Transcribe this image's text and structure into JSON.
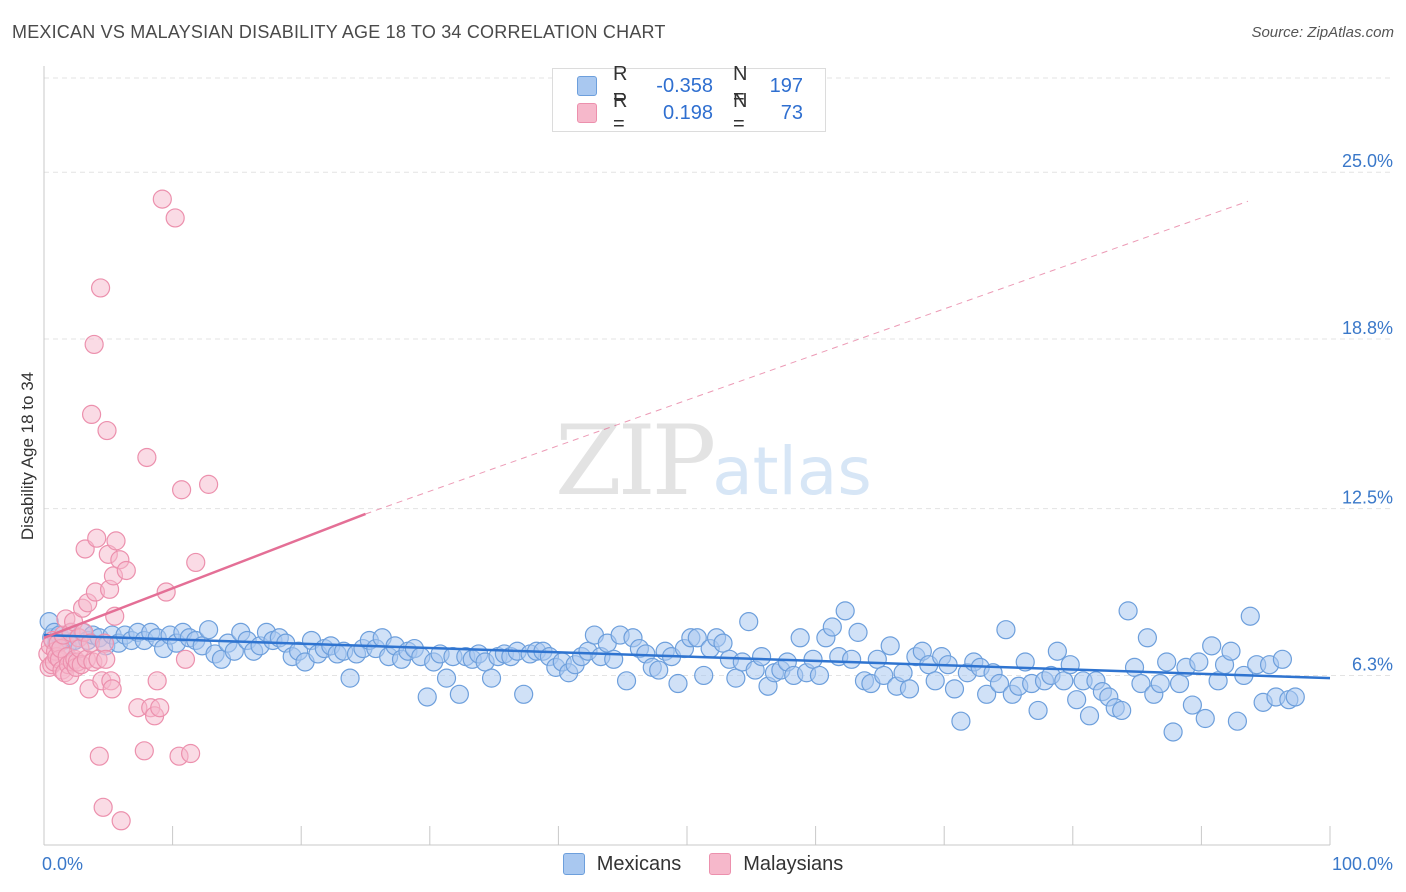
{
  "header": {
    "title": "MEXICAN VS MALAYSIAN DISABILITY AGE 18 TO 34 CORRELATION CHART",
    "source": "Source: ZipAtlas.com"
  },
  "watermark": {
    "zip": "ZIP",
    "atlas": "atlas"
  },
  "legend": {
    "rows": [
      {
        "r_label": "R =",
        "r_value": "-0.358",
        "n_label": "N =",
        "n_value": "197",
        "color": "#a9c8f0"
      },
      {
        "r_label": "R =",
        "r_value": "0.198",
        "n_label": "N =",
        "n_value": "73",
        "color": "#f6b8cb"
      }
    ]
  },
  "bottom_legend": {
    "series1": "Mexicans",
    "series2": "Malaysians"
  },
  "colors": {
    "blue_fill": "#a9c8f0",
    "blue_stroke": "#6d9fdc",
    "blue_line": "#2f74d0",
    "pink_fill": "#f6b8cb",
    "pink_stroke": "#ec90ad",
    "pink_line": "#e46f96",
    "grid": "#e3e3e3",
    "tick_label": "#3a78c9"
  },
  "chart_data": {
    "type": "scatter",
    "title": "MEXICAN VS MALAYSIAN DISABILITY AGE 18 TO 34 CORRELATION CHART",
    "xlabel": "",
    "ylabel": "Disability Age 18 to 34",
    "xlim": [
      0,
      100
    ],
    "ylim": [
      0,
      28.5
    ],
    "x_tick_labels": [
      "0.0%",
      "100.0%"
    ],
    "y_ticks": [
      6.3,
      12.5,
      18.8,
      25.0
    ],
    "y_tick_labels": [
      "6.3%",
      "12.5%",
      "18.8%",
      "25.0%"
    ],
    "grid": true,
    "legend_position": "top-center",
    "series": [
      {
        "name": "Mexicans",
        "r": -0.358,
        "n": 197,
        "trend": {
          "x": [
            0,
            100
          ],
          "y": [
            7.8,
            6.2
          ],
          "style": "solid"
        },
        "points": [
          [
            0.4,
            8.3
          ],
          [
            0.6,
            7.7
          ],
          [
            0.8,
            7.9
          ],
          [
            1.0,
            7.5
          ],
          [
            1.2,
            7.8
          ],
          [
            1.5,
            7.6
          ],
          [
            1.8,
            7.4
          ],
          [
            2.1,
            7.9
          ],
          [
            2.4,
            7.6
          ],
          [
            2.7,
            7.7
          ],
          [
            3.0,
            7.9
          ],
          [
            3.4,
            7.6
          ],
          [
            3.8,
            7.8
          ],
          [
            4.3,
            7.7
          ],
          [
            4.8,
            7.4
          ],
          [
            5.3,
            7.8
          ],
          [
            5.8,
            7.5
          ],
          [
            6.3,
            7.8
          ],
          [
            6.8,
            7.6
          ],
          [
            7.3,
            7.9
          ],
          [
            7.8,
            7.6
          ],
          [
            8.3,
            7.9
          ],
          [
            8.8,
            7.7
          ],
          [
            9.3,
            7.3
          ],
          [
            9.8,
            7.8
          ],
          [
            10.3,
            7.5
          ],
          [
            10.8,
            7.9
          ],
          [
            11.3,
            7.7
          ],
          [
            11.8,
            7.6
          ],
          [
            12.3,
            7.4
          ],
          [
            12.8,
            8.0
          ],
          [
            13.3,
            7.1
          ],
          [
            13.8,
            6.9
          ],
          [
            14.3,
            7.5
          ],
          [
            14.8,
            7.2
          ],
          [
            15.3,
            7.9
          ],
          [
            15.8,
            7.6
          ],
          [
            16.3,
            7.2
          ],
          [
            16.8,
            7.4
          ],
          [
            17.3,
            7.9
          ],
          [
            17.8,
            7.6
          ],
          [
            18.3,
            7.7
          ],
          [
            18.8,
            7.5
          ],
          [
            19.3,
            7.0
          ],
          [
            19.8,
            7.2
          ],
          [
            20.3,
            6.8
          ],
          [
            20.8,
            7.6
          ],
          [
            21.3,
            7.1
          ],
          [
            21.8,
            7.3
          ],
          [
            22.3,
            7.4
          ],
          [
            22.8,
            7.1
          ],
          [
            23.3,
            7.2
          ],
          [
            23.8,
            6.2
          ],
          [
            24.3,
            7.1
          ],
          [
            24.8,
            7.3
          ],
          [
            25.3,
            7.6
          ],
          [
            25.8,
            7.3
          ],
          [
            26.3,
            7.7
          ],
          [
            26.8,
            7.0
          ],
          [
            27.3,
            7.4
          ],
          [
            27.8,
            6.9
          ],
          [
            28.3,
            7.2
          ],
          [
            28.8,
            7.3
          ],
          [
            29.3,
            7.0
          ],
          [
            29.8,
            5.5
          ],
          [
            30.3,
            6.8
          ],
          [
            30.8,
            7.1
          ],
          [
            31.3,
            6.2
          ],
          [
            31.8,
            7.0
          ],
          [
            32.3,
            5.6
          ],
          [
            32.8,
            7.0
          ],
          [
            33.3,
            6.9
          ],
          [
            33.8,
            7.1
          ],
          [
            34.3,
            6.8
          ],
          [
            34.8,
            6.2
          ],
          [
            35.3,
            7.0
          ],
          [
            35.8,
            7.1
          ],
          [
            36.3,
            7.0
          ],
          [
            36.8,
            7.2
          ],
          [
            37.3,
            5.6
          ],
          [
            37.8,
            7.1
          ],
          [
            38.3,
            7.2
          ],
          [
            38.8,
            7.2
          ],
          [
            39.3,
            7.0
          ],
          [
            39.8,
            6.6
          ],
          [
            40.3,
            6.8
          ],
          [
            40.8,
            6.4
          ],
          [
            41.3,
            6.7
          ],
          [
            41.8,
            7.0
          ],
          [
            42.3,
            7.2
          ],
          [
            42.8,
            7.8
          ],
          [
            43.3,
            7.0
          ],
          [
            43.8,
            7.5
          ],
          [
            44.3,
            6.9
          ],
          [
            44.8,
            7.8
          ],
          [
            45.3,
            6.1
          ],
          [
            45.8,
            7.7
          ],
          [
            46.3,
            7.3
          ],
          [
            46.8,
            7.1
          ],
          [
            47.3,
            6.6
          ],
          [
            47.8,
            6.5
          ],
          [
            48.3,
            7.2
          ],
          [
            48.8,
            7.0
          ],
          [
            49.3,
            6.0
          ],
          [
            49.8,
            7.3
          ],
          [
            50.3,
            7.7
          ],
          [
            50.8,
            7.7
          ],
          [
            51.3,
            6.3
          ],
          [
            51.8,
            7.3
          ],
          [
            52.3,
            7.7
          ],
          [
            52.8,
            7.5
          ],
          [
            53.3,
            6.9
          ],
          [
            53.8,
            6.2
          ],
          [
            54.3,
            6.8
          ],
          [
            54.8,
            8.3
          ],
          [
            55.3,
            6.5
          ],
          [
            55.8,
            7.0
          ],
          [
            56.3,
            5.9
          ],
          [
            56.8,
            6.4
          ],
          [
            57.3,
            6.5
          ],
          [
            57.8,
            6.8
          ],
          [
            58.3,
            6.3
          ],
          [
            58.8,
            7.7
          ],
          [
            59.3,
            6.4
          ],
          [
            59.8,
            6.9
          ],
          [
            60.3,
            6.3
          ],
          [
            60.8,
            7.7
          ],
          [
            61.3,
            8.1
          ],
          [
            61.8,
            7.0
          ],
          [
            62.3,
            8.7
          ],
          [
            62.8,
            6.9
          ],
          [
            63.3,
            7.9
          ],
          [
            63.8,
            6.1
          ],
          [
            64.3,
            6.0
          ],
          [
            64.8,
            6.9
          ],
          [
            65.3,
            6.3
          ],
          [
            65.8,
            7.4
          ],
          [
            66.3,
            5.9
          ],
          [
            66.8,
            6.4
          ],
          [
            67.3,
            5.8
          ],
          [
            67.8,
            7.0
          ],
          [
            68.3,
            7.2
          ],
          [
            68.8,
            6.7
          ],
          [
            69.3,
            6.1
          ],
          [
            69.8,
            7.0
          ],
          [
            70.3,
            6.7
          ],
          [
            70.8,
            5.8
          ],
          [
            71.3,
            4.6
          ],
          [
            71.8,
            6.4
          ],
          [
            72.3,
            6.8
          ],
          [
            72.8,
            6.6
          ],
          [
            73.3,
            5.6
          ],
          [
            73.8,
            6.4
          ],
          [
            74.3,
            6.0
          ],
          [
            74.8,
            8.0
          ],
          [
            75.3,
            5.6
          ],
          [
            75.8,
            5.9
          ],
          [
            76.3,
            6.8
          ],
          [
            76.8,
            6.0
          ],
          [
            77.3,
            5.0
          ],
          [
            77.8,
            6.1
          ],
          [
            78.3,
            6.3
          ],
          [
            78.8,
            7.2
          ],
          [
            79.3,
            6.1
          ],
          [
            79.8,
            6.7
          ],
          [
            80.3,
            5.4
          ],
          [
            80.8,
            6.1
          ],
          [
            81.3,
            4.8
          ],
          [
            81.8,
            6.1
          ],
          [
            82.3,
            5.7
          ],
          [
            82.8,
            5.5
          ],
          [
            83.3,
            5.1
          ],
          [
            83.8,
            5.0
          ],
          [
            84.3,
            8.7
          ],
          [
            84.8,
            6.6
          ],
          [
            85.3,
            6.0
          ],
          [
            85.8,
            7.7
          ],
          [
            86.3,
            5.6
          ],
          [
            86.8,
            6.0
          ],
          [
            87.3,
            6.8
          ],
          [
            87.8,
            4.2
          ],
          [
            88.3,
            6.0
          ],
          [
            88.8,
            6.6
          ],
          [
            89.3,
            5.2
          ],
          [
            89.8,
            6.8
          ],
          [
            90.3,
            4.7
          ],
          [
            90.8,
            7.4
          ],
          [
            91.3,
            6.1
          ],
          [
            91.8,
            6.7
          ],
          [
            92.3,
            7.2
          ],
          [
            92.8,
            4.6
          ],
          [
            93.3,
            6.3
          ],
          [
            93.8,
            8.5
          ],
          [
            94.3,
            6.7
          ],
          [
            94.8,
            5.3
          ],
          [
            95.3,
            6.7
          ],
          [
            95.8,
            5.5
          ],
          [
            96.3,
            6.9
          ],
          [
            96.8,
            5.4
          ],
          [
            97.3,
            5.5
          ]
        ]
      },
      {
        "name": "Malaysians",
        "r": 0.198,
        "n": 73,
        "trend": {
          "x": [
            0,
            25
          ],
          "y": [
            7.7,
            12.3
          ],
          "style": "solid",
          "extended_dashed_to": [
            100,
            25.0
          ]
        },
        "points": [
          [
            0.3,
            7.1
          ],
          [
            0.4,
            6.6
          ],
          [
            0.5,
            7.4
          ],
          [
            0.6,
            6.7
          ],
          [
            0.7,
            7.6
          ],
          [
            0.8,
            6.8
          ],
          [
            0.9,
            7.2
          ],
          [
            1.0,
            7.0
          ],
          [
            1.1,
            7.5
          ],
          [
            1.2,
            6.9
          ],
          [
            1.3,
            7.3
          ],
          [
            1.4,
            6.5
          ],
          [
            1.5,
            7.8
          ],
          [
            1.6,
            6.4
          ],
          [
            1.7,
            8.4
          ],
          [
            1.8,
            7.0
          ],
          [
            1.9,
            6.7
          ],
          [
            2.0,
            6.3
          ],
          [
            2.1,
            7.9
          ],
          [
            2.2,
            6.8
          ],
          [
            2.3,
            8.3
          ],
          [
            2.4,
            6.9
          ],
          [
            2.5,
            6.6
          ],
          [
            2.6,
            6.8
          ],
          [
            2.7,
            7.7
          ],
          [
            2.8,
            7.3
          ],
          [
            2.9,
            6.7
          ],
          [
            3.0,
            8.8
          ],
          [
            3.1,
            7.9
          ],
          [
            3.2,
            11.0
          ],
          [
            3.3,
            6.9
          ],
          [
            3.4,
            9.0
          ],
          [
            3.5,
            5.8
          ],
          [
            3.6,
            7.5
          ],
          [
            3.7,
            16.0
          ],
          [
            3.8,
            6.8
          ],
          [
            3.9,
            18.6
          ],
          [
            4.0,
            9.4
          ],
          [
            4.1,
            11.4
          ],
          [
            4.2,
            6.9
          ],
          [
            4.3,
            3.3
          ],
          [
            4.4,
            20.7
          ],
          [
            4.5,
            6.1
          ],
          [
            4.6,
            1.4
          ],
          [
            4.7,
            7.5
          ],
          [
            4.8,
            6.9
          ],
          [
            4.9,
            15.4
          ],
          [
            5.0,
            10.8
          ],
          [
            5.1,
            9.5
          ],
          [
            5.2,
            6.1
          ],
          [
            5.3,
            5.8
          ],
          [
            5.4,
            10.0
          ],
          [
            5.5,
            8.5
          ],
          [
            5.6,
            11.3
          ],
          [
            5.9,
            10.6
          ],
          [
            6.0,
            0.9
          ],
          [
            6.4,
            10.2
          ],
          [
            7.3,
            5.1
          ],
          [
            7.8,
            3.5
          ],
          [
            8.0,
            14.4
          ],
          [
            8.3,
            5.1
          ],
          [
            8.6,
            4.8
          ],
          [
            8.8,
            6.1
          ],
          [
            9.0,
            5.1
          ],
          [
            9.2,
            24.0
          ],
          [
            9.5,
            9.4
          ],
          [
            10.2,
            23.3
          ],
          [
            10.5,
            3.3
          ],
          [
            10.7,
            13.2
          ],
          [
            11.0,
            6.9
          ],
          [
            11.4,
            3.4
          ],
          [
            11.8,
            10.5
          ],
          [
            12.8,
            13.4
          ]
        ]
      }
    ]
  }
}
